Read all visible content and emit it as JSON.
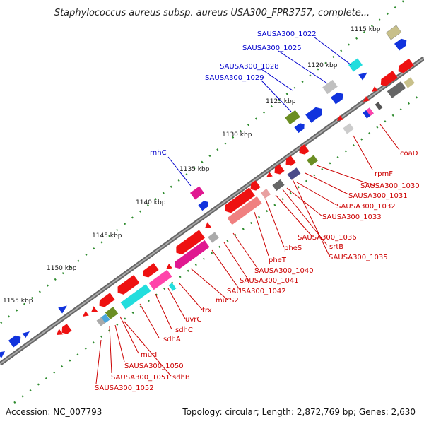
{
  "title": "Staphylococcus aureus subsp. aureus USA300_FPR3757, complete...",
  "footer": {
    "accession": "Accession: NC_007793",
    "topology": "Topology: circular; Length: 2,872,769 bp; Genes: 2,630"
  },
  "ticks": [
    "1115 kbp",
    "1120 kbp",
    "1125 kbp",
    "1130 kbp",
    "1135 kbp",
    "1140 kbp",
    "1145 kbp",
    "1150 kbp",
    "1155 kbp"
  ],
  "labels_blue": [
    "SAUSA300_1022",
    "SAUSA300_1025",
    "SAUSA300_1028",
    "SAUSA300_1029",
    "rnhC"
  ],
  "labels_red": [
    "coaD",
    "rpmF",
    "SAUSA300_1030",
    "SAUSA300_1031",
    "SAUSA300_1032",
    "SAUSA300_1033",
    "SAUSA300_1036",
    "srtB",
    "SAUSA300_1035",
    "pheS",
    "pheT",
    "SAUSA300_1040",
    "SAUSA300_1041",
    "SAUSA300_1042",
    "mutS2",
    "trx",
    "uvrC",
    "sdhC",
    "sdhA",
    "murI",
    "SAUSA300_1050",
    "SAUSA300_1051",
    "sdhB",
    "SAUSA300_1052"
  ],
  "colors": {
    "backbone": "#888888",
    "gc_dots": "#2e8b2e",
    "forward_gene": "#0033cc",
    "reverse_gene": "#ee1111",
    "label_blue": "#0000cc",
    "label_red": "#cc0000"
  }
}
